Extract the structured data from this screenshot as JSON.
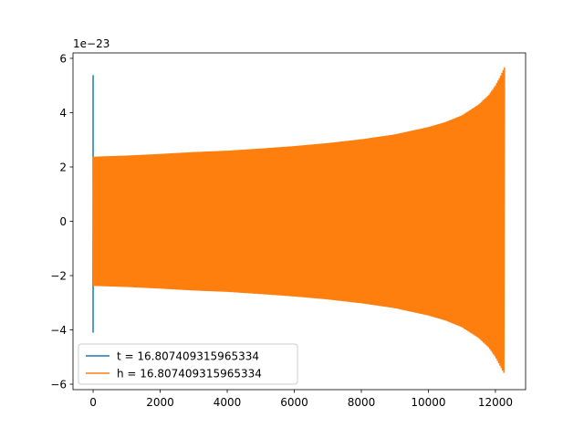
{
  "chart_data": {
    "type": "line",
    "title": "",
    "xlabel": "",
    "ylabel": "",
    "y_offset_text": "1e−23",
    "xlim": [
      -600,
      12900
    ],
    "ylim": [
      -6.2,
      6.2
    ],
    "xticks": [
      0,
      2000,
      4000,
      6000,
      8000,
      10000,
      12000
    ],
    "xtick_labels": [
      "0",
      "2000",
      "4000",
      "6000",
      "8000",
      "10000",
      "12000"
    ],
    "yticks": [
      -6,
      -4,
      -2,
      0,
      2,
      4,
      6
    ],
    "ytick_labels": [
      "−6",
      "−4",
      "−2",
      "0",
      "2",
      "4",
      "6"
    ],
    "grid": false,
    "legend_position": "lower-left",
    "series": [
      {
        "name": "t = 16.807409315965334",
        "color": "#1f77b4",
        "kind": "spike",
        "x": [
          0,
          0,
          0
        ],
        "y": [
          0,
          5.38,
          -4.1
        ]
      },
      {
        "name": "h = 16.807409315965334",
        "color": "#ff7f0e",
        "kind": "chirp",
        "x_range": [
          0,
          12280
        ],
        "envelope_x": [
          0,
          1000,
          2000,
          3000,
          4000,
          5000,
          6000,
          7000,
          8000,
          9000,
          10000,
          10500,
          11000,
          11500,
          11800,
          12000,
          12150,
          12280
        ],
        "envelope_upper": [
          2.38,
          2.42,
          2.48,
          2.55,
          2.6,
          2.68,
          2.77,
          2.88,
          3.02,
          3.2,
          3.47,
          3.65,
          3.9,
          4.3,
          4.65,
          5.0,
          5.35,
          5.7
        ],
        "envelope_lower": [
          -2.38,
          -2.42,
          -2.48,
          -2.55,
          -2.6,
          -2.68,
          -2.77,
          -2.88,
          -3.02,
          -3.2,
          -3.47,
          -3.65,
          -3.9,
          -4.3,
          -4.65,
          -5.0,
          -5.35,
          -5.65
        ]
      }
    ]
  }
}
